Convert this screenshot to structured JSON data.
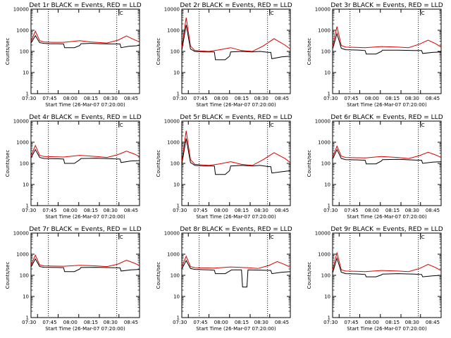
{
  "chart_data": [
    {
      "type": "line",
      "title": "Det 1r BLACK = Events, RED = LLD",
      "xlabel": "Start Time (26-Mar-07 07:20:00)",
      "ylabel": "Counts/sec",
      "log_y": true,
      "ylim": [
        1,
        10000
      ],
      "x_tick_labels": [
        "07:30",
        "07:45",
        "08:00",
        "08:15",
        "08:30",
        "08:45"
      ],
      "y_tick_labels": [
        "1",
        "10",
        "100",
        "1000",
        "10000"
      ],
      "marker_label": "C",
      "series": [
        {
          "color": "#000000",
          "x": [
            0.0,
            0.04,
            0.08,
            0.12,
            0.17,
            0.25,
            0.3,
            0.31,
            0.4,
            0.45,
            0.46,
            0.55,
            0.65,
            0.75,
            0.82,
            0.83,
            0.9,
            0.97,
            1.0
          ],
          "y": [
            250,
            560,
            260,
            240,
            230,
            230,
            225,
            150,
            150,
            190,
            230,
            240,
            230,
            225,
            225,
            150,
            175,
            185,
            195
          ]
        },
        {
          "color": "#dd0000",
          "x": [
            0.0,
            0.04,
            0.08,
            0.12,
            0.2,
            0.3,
            0.45,
            0.55,
            0.7,
            0.8,
            0.88,
            0.94,
            1.0
          ],
          "y": [
            300,
            900,
            320,
            280,
            270,
            270,
            320,
            280,
            250,
            340,
            540,
            380,
            280
          ]
        }
      ]
    },
    {
      "type": "line",
      "title": "Det 2r BLACK = Events, RED = LLD",
      "xlabel": "Start Time (26-Mar-07 07:20:00)",
      "ylabel": "Counts/sec",
      "log_y": true,
      "ylim": [
        1,
        10000
      ],
      "x_tick_labels": [
        "07:30",
        "07:45",
        "08:00",
        "08:15",
        "08:30",
        "08:45"
      ],
      "y_tick_labels": [
        "1",
        "10",
        "100",
        "1000",
        "10000"
      ],
      "marker_label": "C",
      "series": [
        {
          "color": "#000000",
          "x": [
            0.0,
            0.04,
            0.08,
            0.12,
            0.2,
            0.3,
            0.31,
            0.4,
            0.44,
            0.45,
            0.55,
            0.65,
            0.72,
            0.8,
            0.82,
            0.83,
            0.92,
            1.0
          ],
          "y": [
            110,
            1800,
            130,
            100,
            95,
            95,
            40,
            40,
            60,
            95,
            100,
            95,
            100,
            90,
            90,
            45,
            55,
            60
          ]
        },
        {
          "color": "#dd0000",
          "x": [
            0.0,
            0.04,
            0.08,
            0.12,
            0.25,
            0.35,
            0.45,
            0.55,
            0.65,
            0.75,
            0.85,
            0.95,
            1.0
          ],
          "y": [
            150,
            4000,
            180,
            110,
            100,
            120,
            150,
            110,
            100,
            180,
            400,
            200,
            130
          ]
        }
      ]
    },
    {
      "type": "line",
      "title": "Det 3r BLACK = Events, RED = LLD",
      "xlabel": "Start Time (26-Mar-07 07:20:00)",
      "ylabel": "Counts/sec",
      "log_y": true,
      "ylim": [
        1,
        10000
      ],
      "x_tick_labels": [
        "07:30",
        "07:45",
        "08:00",
        "08:15",
        "08:30",
        "08:45"
      ],
      "y_tick_labels": [
        "1",
        "10",
        "100",
        "1000",
        "10000"
      ],
      "marker_label": "C",
      "series": [
        {
          "color": "#000000",
          "x": [
            0.0,
            0.04,
            0.08,
            0.12,
            0.25,
            0.3,
            0.31,
            0.4,
            0.45,
            0.46,
            0.6,
            0.75,
            0.82,
            0.83,
            0.92,
            1.0
          ],
          "y": [
            130,
            700,
            140,
            120,
            115,
            110,
            75,
            75,
            100,
            115,
            115,
            110,
            110,
            80,
            90,
            95
          ]
        },
        {
          "color": "#dd0000",
          "x": [
            0.0,
            0.04,
            0.08,
            0.12,
            0.3,
            0.45,
            0.6,
            0.7,
            0.8,
            0.88,
            0.95,
            1.0
          ],
          "y": [
            170,
            1500,
            190,
            160,
            150,
            170,
            160,
            150,
            220,
            340,
            230,
            160
          ]
        }
      ]
    },
    {
      "type": "line",
      "title": "Det 4r BLACK = Events, RED = LLD",
      "xlabel": "Start Time (26-Mar-07 07:20:00)",
      "ylabel": "Counts/sec",
      "log_y": true,
      "ylim": [
        1,
        10000
      ],
      "x_tick_labels": [
        "07:30",
        "07:45",
        "08:00",
        "08:15",
        "08:30",
        "08:45"
      ],
      "y_tick_labels": [
        "1",
        "10",
        "100",
        "1000",
        "10000"
      ],
      "marker_label": "C",
      "series": [
        {
          "color": "#000000",
          "x": [
            0.0,
            0.04,
            0.08,
            0.12,
            0.25,
            0.3,
            0.31,
            0.4,
            0.45,
            0.46,
            0.6,
            0.75,
            0.82,
            0.83,
            0.92,
            1.0
          ],
          "y": [
            180,
            450,
            190,
            170,
            165,
            160,
            100,
            100,
            150,
            170,
            175,
            165,
            160,
            110,
            130,
            135
          ]
        },
        {
          "color": "#dd0000",
          "x": [
            0.0,
            0.04,
            0.08,
            0.12,
            0.3,
            0.45,
            0.6,
            0.7,
            0.8,
            0.88,
            0.95,
            1.0
          ],
          "y": [
            220,
            700,
            240,
            210,
            200,
            240,
            210,
            190,
            260,
            380,
            280,
            210
          ]
        }
      ]
    },
    {
      "type": "line",
      "title": "Det 5r BLACK = Events, RED = LLD",
      "xlabel": "Start Time (26-Mar-07 07:20:00)",
      "ylabel": "Counts/sec",
      "log_y": true,
      "ylim": [
        1,
        10000
      ],
      "x_tick_labels": [
        "07:30",
        "07:45",
        "08:00",
        "08:15",
        "08:30",
        "08:45"
      ],
      "y_tick_labels": [
        "1",
        "10",
        "100",
        "1000",
        "10000"
      ],
      "marker_label": "C",
      "series": [
        {
          "color": "#000000",
          "x": [
            0.0,
            0.04,
            0.08,
            0.12,
            0.2,
            0.3,
            0.31,
            0.4,
            0.44,
            0.45,
            0.55,
            0.65,
            0.72,
            0.8,
            0.82,
            0.83,
            0.92,
            1.0
          ],
          "y": [
            90,
            1500,
            110,
            80,
            75,
            75,
            30,
            30,
            45,
            75,
            80,
            75,
            80,
            70,
            70,
            35,
            40,
            45
          ]
        },
        {
          "color": "#dd0000",
          "x": [
            0.0,
            0.04,
            0.08,
            0.12,
            0.25,
            0.35,
            0.45,
            0.55,
            0.65,
            0.75,
            0.85,
            0.95,
            1.0
          ],
          "y": [
            120,
            3500,
            150,
            90,
            80,
            95,
            120,
            90,
            80,
            150,
            320,
            170,
            110
          ]
        }
      ]
    },
    {
      "type": "line",
      "title": "Det 6r BLACK = Events, RED = LLD",
      "xlabel": "Start Time (26-Mar-07 07:20:00)",
      "ylabel": "Counts/sec",
      "log_y": true,
      "ylim": [
        1,
        10000
      ],
      "x_tick_labels": [
        "07:30",
        "07:45",
        "08:00",
        "08:15",
        "08:30",
        "08:45"
      ],
      "y_tick_labels": [
        "1",
        "10",
        "100",
        "1000",
        "10000"
      ],
      "marker_label": "C",
      "series": [
        {
          "color": "#000000",
          "x": [
            0.0,
            0.04,
            0.08,
            0.12,
            0.25,
            0.3,
            0.31,
            0.4,
            0.45,
            0.46,
            0.6,
            0.75,
            0.82,
            0.83,
            0.92,
            1.0
          ],
          "y": [
            160,
            450,
            170,
            150,
            145,
            140,
            95,
            95,
            130,
            150,
            155,
            145,
            140,
            100,
            115,
            120
          ]
        },
        {
          "color": "#dd0000",
          "x": [
            0.0,
            0.04,
            0.08,
            0.12,
            0.3,
            0.45,
            0.6,
            0.7,
            0.8,
            0.88,
            0.95,
            1.0
          ],
          "y": [
            200,
            650,
            220,
            190,
            180,
            210,
            190,
            170,
            230,
            340,
            250,
            190
          ]
        }
      ]
    },
    {
      "type": "line",
      "title": "Det 7r BLACK = Events, RED = LLD",
      "xlabel": "Start Time (26-Mar-07 07:20:00)",
      "ylabel": "Counts/sec",
      "log_y": true,
      "ylim": [
        1,
        10000
      ],
      "x_tick_labels": [
        "07:30",
        "07:45",
        "08:00",
        "08:15",
        "08:30",
        "08:45"
      ],
      "y_tick_labels": [
        "1",
        "10",
        "100",
        "1000",
        "10000"
      ],
      "marker_label": "C",
      "series": [
        {
          "color": "#000000",
          "x": [
            0.0,
            0.04,
            0.08,
            0.12,
            0.25,
            0.3,
            0.31,
            0.4,
            0.45,
            0.46,
            0.6,
            0.75,
            0.82,
            0.83,
            0.92,
            1.0
          ],
          "y": [
            250,
            600,
            260,
            240,
            235,
            230,
            150,
            150,
            200,
            235,
            240,
            230,
            225,
            160,
            180,
            190
          ]
        },
        {
          "color": "#dd0000",
          "x": [
            0.0,
            0.04,
            0.08,
            0.12,
            0.3,
            0.45,
            0.6,
            0.7,
            0.8,
            0.88,
            0.95,
            1.0
          ],
          "y": [
            300,
            900,
            310,
            280,
            270,
            300,
            280,
            260,
            340,
            520,
            380,
            290
          ]
        }
      ]
    },
    {
      "type": "line",
      "title": "Det 8r BLACK = Events, RED = LLD",
      "xlabel": "Start Time (26-Mar-07 07:20:00)",
      "ylabel": "Counts/sec",
      "log_y": true,
      "ylim": [
        1,
        10000
      ],
      "x_tick_labels": [
        "07:30",
        "07:45",
        "08:00",
        "08:15",
        "08:30",
        "08:45"
      ],
      "y_tick_labels": [
        "1",
        "10",
        "100",
        "1000",
        "10000"
      ],
      "marker_label": "C",
      "series": [
        {
          "color": "#000000",
          "x": [
            0.0,
            0.04,
            0.08,
            0.12,
            0.25,
            0.3,
            0.31,
            0.4,
            0.45,
            0.46,
            0.55,
            0.56,
            0.6,
            0.61,
            0.75,
            0.82,
            0.83,
            0.92,
            1.0
          ],
          "y": [
            200,
            500,
            210,
            190,
            180,
            175,
            120,
            120,
            170,
            180,
            180,
            28,
            28,
            180,
            175,
            170,
            120,
            140,
            150
          ]
        },
        {
          "color": "#dd0000",
          "x": [
            0.0,
            0.04,
            0.08,
            0.12,
            0.3,
            0.45,
            0.6,
            0.7,
            0.8,
            0.88,
            0.95,
            1.0
          ],
          "y": [
            250,
            800,
            260,
            230,
            220,
            250,
            230,
            210,
            290,
            450,
            320,
            240
          ]
        }
      ]
    },
    {
      "type": "line",
      "title": "Det 9r BLACK = Events, RED = LLD",
      "xlabel": "Start Time (26-Mar-07 07:20:00)",
      "ylabel": "Counts/sec",
      "log_y": true,
      "ylim": [
        1,
        10000
      ],
      "x_tick_labels": [
        "07:30",
        "07:45",
        "08:00",
        "08:15",
        "08:30",
        "08:45"
      ],
      "y_tick_labels": [
        "1",
        "10",
        "100",
        "1000",
        "10000"
      ],
      "marker_label": "C",
      "series": [
        {
          "color": "#000000",
          "x": [
            0.0,
            0.04,
            0.08,
            0.12,
            0.25,
            0.3,
            0.31,
            0.4,
            0.45,
            0.46,
            0.6,
            0.75,
            0.82,
            0.83,
            0.92,
            1.0
          ],
          "y": [
            130,
            650,
            140,
            120,
            115,
            110,
            85,
            85,
            105,
            115,
            120,
            115,
            110,
            85,
            95,
            100
          ]
        },
        {
          "color": "#dd0000",
          "x": [
            0.0,
            0.04,
            0.08,
            0.12,
            0.3,
            0.45,
            0.6,
            0.7,
            0.8,
            0.88,
            0.95,
            1.0
          ],
          "y": [
            170,
            1200,
            180,
            160,
            150,
            170,
            160,
            150,
            210,
            330,
            230,
            165
          ]
        }
      ]
    }
  ]
}
